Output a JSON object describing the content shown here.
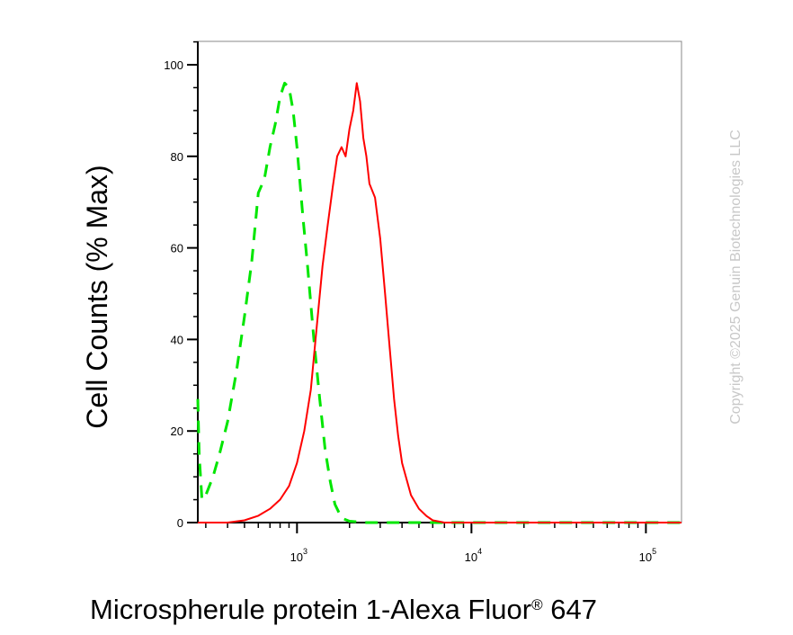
{
  "chart_data": {
    "type": "line",
    "x_scale": "log",
    "xlim": [
      270,
      160000
    ],
    "ylim": [
      0,
      105
    ],
    "xlabel": "Microspherule protein 1-Alexa Fluor",
    "xlabel_superscript": "®",
    "xlabel_suffix": " 647",
    "ylabel": "Cell Counts (% Max)",
    "y_ticks": [
      0,
      20,
      40,
      60,
      80,
      100
    ],
    "y_tick_labels": [
      "0",
      "20",
      "40",
      "60",
      "80",
      "100"
    ],
    "x_decades": [
      {
        "value": 1000,
        "base": "10",
        "exponent": "3"
      },
      {
        "value": 10000,
        "base": "10",
        "exponent": "4"
      },
      {
        "value": 100000,
        "base": "10",
        "exponent": "5"
      }
    ],
    "grid": false,
    "series": [
      {
        "color": "#00e600",
        "dash": "dashed",
        "x": [
          270,
          275,
          285,
          300,
          330,
          360,
          400,
          450,
          500,
          550,
          600,
          650,
          700,
          750,
          800,
          850,
          900,
          950,
          1000,
          1080,
          1150,
          1250,
          1350,
          1450,
          1550,
          1650,
          1800,
          2000,
          2500,
          3000,
          5000,
          10000,
          100000,
          160000
        ],
        "y": [
          27,
          15,
          5,
          6,
          10,
          15,
          22,
          33,
          45,
          57,
          72,
          75,
          82,
          87,
          93,
          96,
          95,
          90,
          82,
          67,
          56,
          40,
          27,
          16,
          9,
          4,
          1,
          0.3,
          0,
          0,
          0,
          0,
          0,
          0
        ]
      },
      {
        "color": "#ff0000",
        "dash": "solid",
        "x": [
          270,
          400,
          500,
          600,
          700,
          800,
          900,
          1000,
          1100,
          1200,
          1300,
          1400,
          1500,
          1600,
          1700,
          1800,
          1900,
          2000,
          2100,
          2200,
          2300,
          2400,
          2500,
          2600,
          2800,
          3000,
          3200,
          3400,
          3600,
          3800,
          4000,
          4500,
          5000,
          5500,
          6000,
          7000,
          10000,
          100000,
          160000
        ],
        "y": [
          0,
          0,
          0.5,
          1.5,
          3,
          5,
          8,
          13,
          20,
          29,
          43,
          56,
          65,
          73,
          80,
          82,
          80,
          86,
          90,
          96,
          92,
          84,
          80,
          74,
          71,
          62,
          50,
          38,
          27,
          19,
          13,
          6,
          3,
          1.5,
          0.5,
          0,
          0,
          0,
          0
        ]
      }
    ]
  },
  "watermark": "Copyright ©2025 Genuin Biotechnologies LLC"
}
